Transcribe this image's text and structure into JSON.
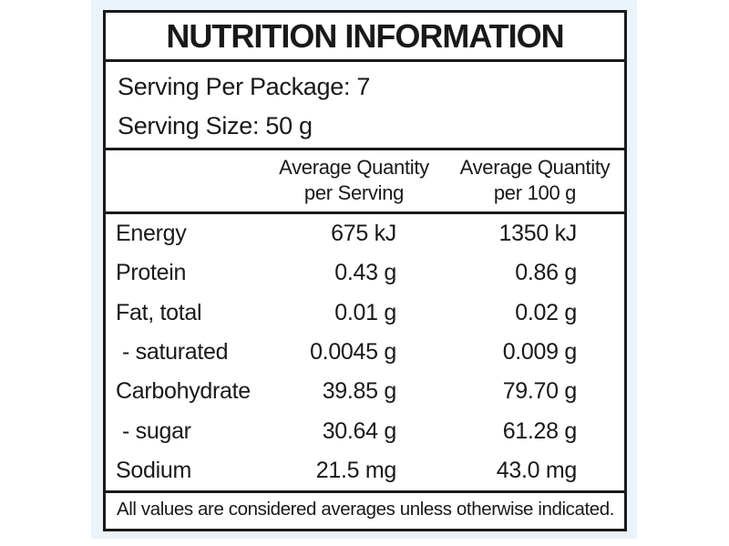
{
  "page": {
    "background": "#ffffff",
    "backdrop_color": "#eaf2fa",
    "label_background": "#ffffff",
    "border_color": "#1a1a1a"
  },
  "label": {
    "title": "NUTRITION INFORMATION",
    "serving": {
      "per_package": "Serving Per Package: 7",
      "size": "Serving Size: 50 g"
    },
    "columns": {
      "per_serving_line1": "Average Quantity",
      "per_serving_line2": "per Serving",
      "per_100g_line1": "Average Quantity",
      "per_100g_line2": "per 100 g"
    },
    "rows": [
      {
        "nutrient": "Energy",
        "per_serving": "675 kJ",
        "per_100g": "1350 kJ"
      },
      {
        "nutrient": "Protein",
        "per_serving": "0.43 g",
        "per_100g": "0.86 g"
      },
      {
        "nutrient": "Fat, total",
        "per_serving": "0.01 g",
        "per_100g": "0.02 g"
      },
      {
        "nutrient": "- saturated",
        "per_serving": "0.0045 g",
        "per_100g": "0.009 g"
      },
      {
        "nutrient": "Carbohydrate",
        "per_serving": "39.85 g",
        "per_100g": "79.70 g"
      },
      {
        "nutrient": "- sugar",
        "per_serving": "30.64 g",
        "per_100g": "61.28 g"
      },
      {
        "nutrient": "Sodium",
        "per_serving": "21.5 mg",
        "per_100g": "43.0 mg"
      }
    ],
    "footer": "All values are considered averages unless otherwise indicated."
  }
}
